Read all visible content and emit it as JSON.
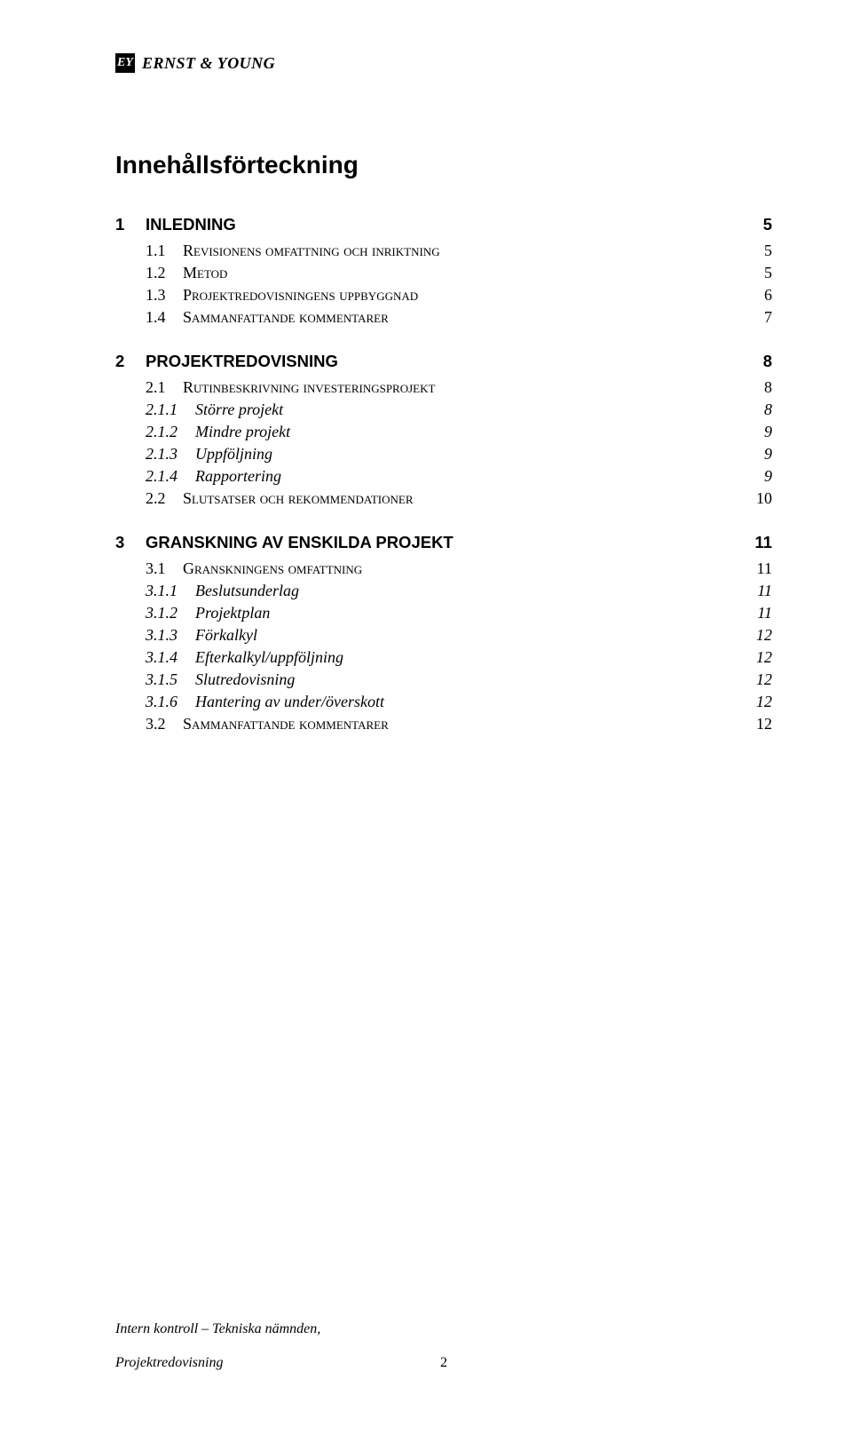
{
  "logo": {
    "mark_text": "EY",
    "wordmark": "ERNST & YOUNG"
  },
  "title": "Innehållsförteckning",
  "toc": [
    {
      "level": 1,
      "num": "1",
      "label": "INLEDNING",
      "page": "5"
    },
    {
      "level": 2,
      "num": "1.1",
      "label": "Revisionens omfattning och inriktning",
      "page": "5"
    },
    {
      "level": 2,
      "num": "1.2",
      "label": "Metod",
      "page": "5"
    },
    {
      "level": 2,
      "num": "1.3",
      "label": "Projektredovisningens uppbyggnad",
      "page": "6"
    },
    {
      "level": 2,
      "num": "1.4",
      "label": "Sammanfattande kommentarer",
      "page": "7"
    },
    {
      "level": 1,
      "num": "2",
      "label": "PROJEKTREDOVISNING",
      "page": "8"
    },
    {
      "level": 2,
      "num": "2.1",
      "label": "Rutinbeskrivning investeringsprojekt",
      "page": "8"
    },
    {
      "level": 3,
      "num": "2.1.1",
      "label": "Större projekt",
      "page": "8"
    },
    {
      "level": 3,
      "num": "2.1.2",
      "label": "Mindre projekt",
      "page": "9"
    },
    {
      "level": 3,
      "num": "2.1.3",
      "label": "Uppföljning",
      "page": "9"
    },
    {
      "level": 3,
      "num": "2.1.4",
      "label": "Rapportering",
      "page": "9"
    },
    {
      "level": 2,
      "num": "2.2",
      "label": "Slutsatser och rekommendationer",
      "page": "10"
    },
    {
      "level": 1,
      "num": "3",
      "label": "GRANSKNING AV ENSKILDA PROJEKT",
      "page": "11"
    },
    {
      "level": 2,
      "num": "3.1",
      "label": "Granskningens omfattning",
      "page": "11"
    },
    {
      "level": 3,
      "num": "3.1.1",
      "label": "Beslutsunderlag",
      "page": "11"
    },
    {
      "level": 3,
      "num": "3.1.2",
      "label": "Projektplan",
      "page": "11"
    },
    {
      "level": 3,
      "num": "3.1.3",
      "label": "Förkalkyl",
      "page": "12"
    },
    {
      "level": 3,
      "num": "3.1.4",
      "label": "Efterkalkyl/uppföljning",
      "page": "12"
    },
    {
      "level": 3,
      "num": "3.1.5",
      "label": "Slutredovisning",
      "page": "12"
    },
    {
      "level": 3,
      "num": "3.1.6",
      "label": "Hantering av under/överskott",
      "page": "12"
    },
    {
      "level": 2,
      "num": "3.2",
      "label": "Sammanfattande kommentarer",
      "page": "12"
    }
  ],
  "footer": {
    "line1": "Intern kontroll – Tekniska nämnden,",
    "line2_left": "Projektredovisning",
    "page_number": "2"
  },
  "style": {
    "page_bg": "#ffffff",
    "text_color": "#000000",
    "title_fontsize_pt": 21,
    "lvl1_fontsize_pt": 14,
    "lvl2_fontsize_pt": 13.5,
    "lvl3_fontsize_pt": 13.5,
    "font_sans": "Arial",
    "font_serif": "Times New Roman"
  }
}
